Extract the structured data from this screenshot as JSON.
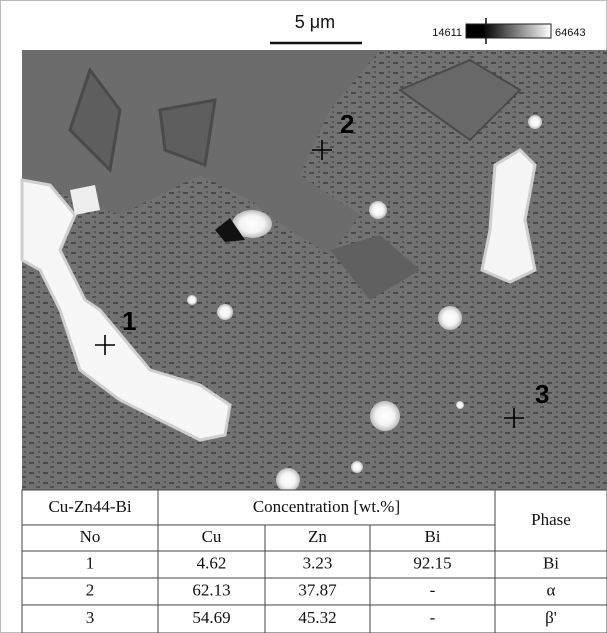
{
  "scale_bar": {
    "label": "5 μm"
  },
  "intensity_bar": {
    "min_label": "14611",
    "max_label": "64643"
  },
  "image": {
    "markers": [
      "1",
      "2",
      "3"
    ]
  },
  "table": {
    "header": [
      "Cu-Zn44-Bi",
      "Concentration [wt.%]",
      "Phase"
    ],
    "subheader": [
      "No",
      "Cu",
      "Zn",
      "Bi"
    ],
    "rows": [
      [
        "1",
        "4.62",
        "3.23",
        "92.15",
        "Bi"
      ],
      [
        "2",
        "62.13",
        "37.87",
        "-",
        "α"
      ],
      [
        "3",
        "54.69",
        "45.32",
        "-",
        "β'"
      ]
    ]
  }
}
